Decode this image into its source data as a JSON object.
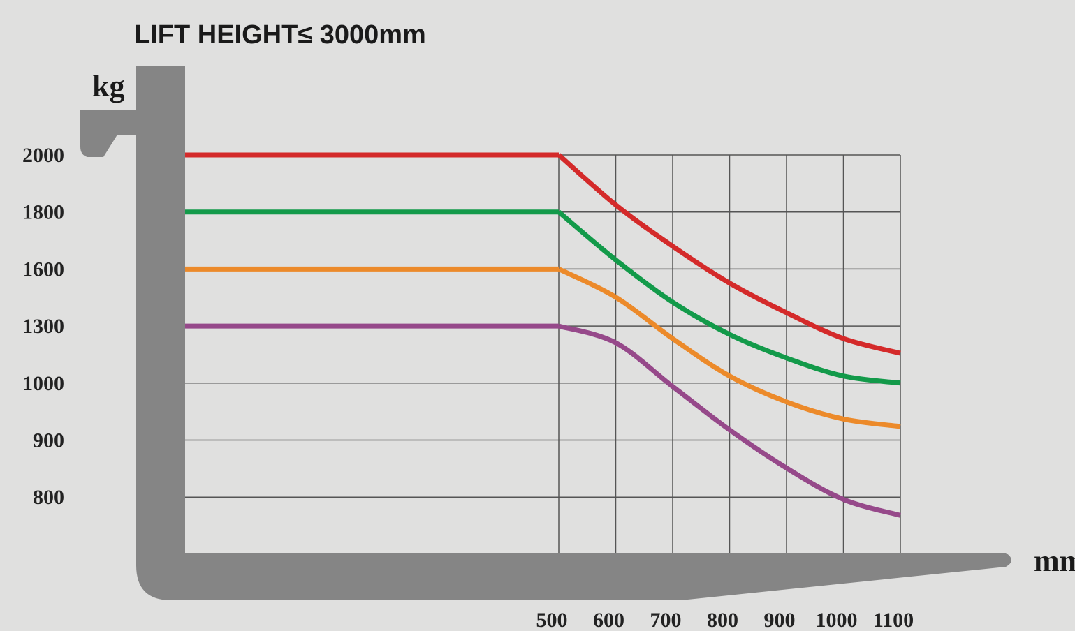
{
  "chart_data": {
    "type": "line",
    "title": "LIFT HEIGHT≤ 3000mm",
    "ylabel": "kg",
    "xlabel": "mm",
    "x": [
      500,
      600,
      700,
      800,
      900,
      1000,
      1100
    ],
    "xlim": [
      500,
      1100
    ],
    "xticks": [
      500,
      600,
      700,
      800,
      900,
      1000,
      1100
    ],
    "yticks": [
      800,
      900,
      1000,
      1300,
      1600,
      1800,
      2000
    ],
    "grid": true,
    "series": [
      {
        "color": "#d42a2a",
        "values": [
          2000,
          1825,
          1680,
          1526,
          1370,
          1234,
          1157
        ]
      },
      {
        "color": "#139a4a",
        "values": [
          1800,
          1632,
          1426,
          1256,
          1132,
          1037,
          1000
        ]
      },
      {
        "color": "#ec8a2a",
        "values": [
          1600,
          1452,
          1234,
          1037,
          967,
          937,
          924
        ]
      },
      {
        "color": "#96498a",
        "values": [
          1300,
          1212,
          994,
          918,
          851,
          796,
          768
        ]
      }
    ]
  }
}
